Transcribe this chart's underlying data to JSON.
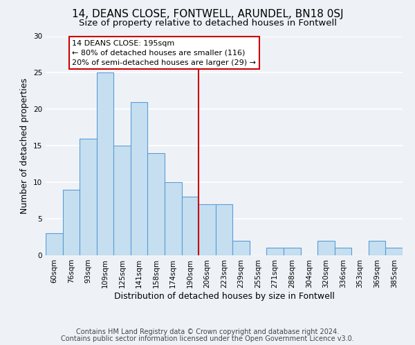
{
  "title": "14, DEANS CLOSE, FONTWELL, ARUNDEL, BN18 0SJ",
  "subtitle": "Size of property relative to detached houses in Fontwell",
  "xlabel": "Distribution of detached houses by size in Fontwell",
  "ylabel": "Number of detached properties",
  "footer_lines": [
    "Contains HM Land Registry data © Crown copyright and database right 2024.",
    "Contains public sector information licensed under the Open Government Licence v3.0."
  ],
  "categories": [
    "60sqm",
    "76sqm",
    "93sqm",
    "109sqm",
    "125sqm",
    "141sqm",
    "158sqm",
    "174sqm",
    "190sqm",
    "206sqm",
    "223sqm",
    "239sqm",
    "255sqm",
    "271sqm",
    "288sqm",
    "304sqm",
    "320sqm",
    "336sqm",
    "353sqm",
    "369sqm",
    "385sqm"
  ],
  "values": [
    3,
    9,
    16,
    25,
    15,
    21,
    14,
    10,
    8,
    7,
    7,
    2,
    0,
    1,
    1,
    0,
    2,
    1,
    0,
    2,
    1
  ],
  "bar_color": "#c5dff0",
  "bar_edge_color": "#5b9bd5",
  "reference_line_x": 8.5,
  "reference_line_color": "#cc0000",
  "annotation_box": {
    "title_text": "14 DEANS CLOSE: 195sqm",
    "line1": "← 80% of detached houses are smaller (116)",
    "line2": "20% of semi-detached houses are larger (29) →",
    "edge_color": "#cc0000",
    "bg_color": "#ffffff"
  },
  "ylim": [
    0,
    30
  ],
  "yticks": [
    0,
    5,
    10,
    15,
    20,
    25,
    30
  ],
  "background_color": "#eef2f7",
  "grid_color": "#ffffff",
  "title_fontsize": 11,
  "subtitle_fontsize": 9.5,
  "axis_label_fontsize": 9,
  "tick_fontsize": 7.5,
  "footer_fontsize": 7
}
